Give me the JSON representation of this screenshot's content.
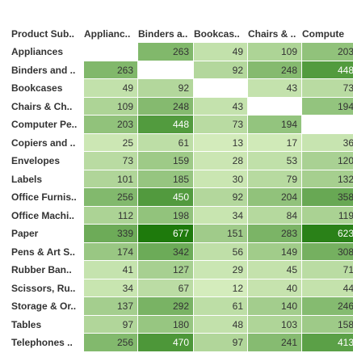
{
  "chart_data": {
    "type": "heatmap",
    "columns": [
      "Product Sub..",
      "Applianc..",
      "Binders a..",
      "Bookcas..",
      "Chairs & ..",
      "Compute"
    ],
    "rows": [
      {
        "label": "Appliances",
        "values": [
          null,
          263,
          49,
          109,
          203
        ]
      },
      {
        "label": "Binders and ..",
        "values": [
          263,
          null,
          92,
          248,
          448
        ]
      },
      {
        "label": "Bookcases",
        "values": [
          49,
          92,
          null,
          43,
          73
        ]
      },
      {
        "label": "Chairs & Ch..",
        "values": [
          109,
          248,
          43,
          null,
          194
        ]
      },
      {
        "label": "Computer Pe..",
        "values": [
          203,
          448,
          73,
          194,
          null
        ]
      },
      {
        "label": "Copiers and ..",
        "values": [
          25,
          61,
          13,
          17,
          36
        ]
      },
      {
        "label": "Envelopes",
        "values": [
          73,
          159,
          28,
          53,
          120
        ]
      },
      {
        "label": "Labels",
        "values": [
          101,
          185,
          30,
          79,
          132
        ]
      },
      {
        "label": "Office Furnis..",
        "values": [
          256,
          450,
          92,
          204,
          358
        ]
      },
      {
        "label": "Office Machi..",
        "values": [
          112,
          198,
          34,
          84,
          119
        ]
      },
      {
        "label": "Paper",
        "values": [
          339,
          677,
          151,
          283,
          623
        ]
      },
      {
        "label": "Pens & Art S..",
        "values": [
          174,
          342,
          56,
          149,
          308
        ]
      },
      {
        "label": "Rubber Ban..",
        "values": [
          41,
          127,
          29,
          45,
          71
        ]
      },
      {
        "label": "Scissors, Ru..",
        "values": [
          34,
          67,
          12,
          40,
          44
        ]
      },
      {
        "label": "Storage & Or..",
        "values": [
          137,
          292,
          61,
          140,
          246
        ]
      },
      {
        "label": "Tables",
        "values": [
          97,
          180,
          48,
          103,
          158
        ]
      },
      {
        "label": "Telephones ..",
        "values": [
          256,
          470,
          97,
          241,
          413
        ]
      }
    ],
    "color_scale": {
      "low": "#d4ecbc",
      "high": "#1e7a0c",
      "min": 12,
      "max": 677
    },
    "grid": false
  }
}
